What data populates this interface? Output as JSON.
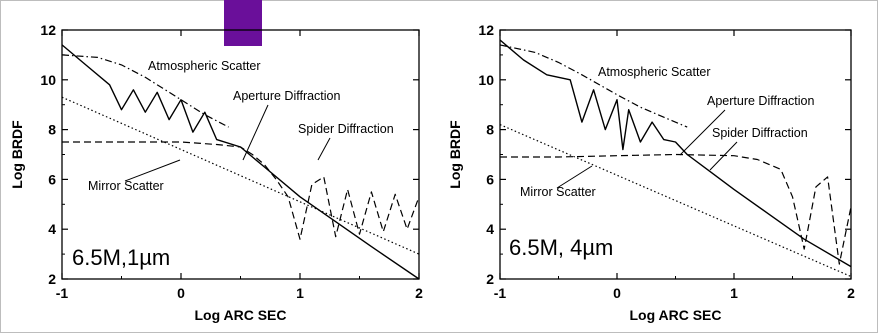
{
  "accent_color": "#6a0f9a",
  "chart_data": [
    {
      "type": "line",
      "title": "",
      "corner_label": "6.5M,1µm",
      "xlabel": "Log ARC SEC",
      "ylabel": "Log BRDF",
      "xlim": [
        -1,
        2
      ],
      "ylim": [
        2,
        12
      ],
      "xticks": [
        "-1",
        "0",
        "1",
        "2"
      ],
      "yticks": [
        "2",
        "4",
        "6",
        "8",
        "10",
        "12"
      ],
      "grid": false,
      "legend": "none",
      "series": [
        {
          "name": "Atmospheric Scatter",
          "style": "dash-dot",
          "x": [
            -1,
            -0.7,
            -0.5,
            -0.3,
            0,
            0.2,
            0.4
          ],
          "y": [
            11.0,
            10.9,
            10.6,
            10.1,
            9.2,
            8.6,
            8.1
          ]
        },
        {
          "name": "Aperture Diffraction",
          "style": "solid",
          "x": [
            -1,
            -0.8,
            -0.6,
            -0.5,
            -0.4,
            -0.3,
            -0.2,
            -0.1,
            0,
            0.1,
            0.2,
            0.3,
            0.5,
            0.7,
            1.0,
            1.3,
            1.6,
            2.0
          ],
          "y": [
            11.4,
            10.6,
            9.8,
            8.8,
            9.6,
            8.7,
            9.5,
            8.4,
            9.2,
            7.9,
            8.7,
            7.6,
            7.3,
            6.5,
            5.3,
            4.3,
            3.3,
            2.0
          ]
        },
        {
          "name": "Spider Diffraction",
          "style": "dashed",
          "x": [
            -1,
            -0.5,
            0,
            0.3,
            0.5,
            0.6,
            0.7,
            0.8,
            0.9,
            1.0,
            1.1,
            1.2,
            1.3,
            1.4,
            1.5,
            1.6,
            1.7,
            1.8,
            1.9,
            2.0
          ],
          "y": [
            7.5,
            7.5,
            7.5,
            7.4,
            7.3,
            7.0,
            6.6,
            6.0,
            5.3,
            3.6,
            5.8,
            6.1,
            3.7,
            5.6,
            3.8,
            5.5,
            3.9,
            5.4,
            4.0,
            5.3
          ]
        },
        {
          "name": "Mirror Scatter",
          "style": "dotted",
          "x": [
            -1,
            2
          ],
          "y": [
            9.3,
            3.0
          ]
        }
      ]
    },
    {
      "type": "line",
      "title": "",
      "corner_label": "6.5M, 4µm",
      "xlabel": "Log ARC SEC",
      "ylabel": "Log BRDF",
      "xlim": [
        -1,
        2
      ],
      "ylim": [
        2,
        12
      ],
      "xticks": [
        "-1",
        "0",
        "1",
        "2"
      ],
      "yticks": [
        "2",
        "4",
        "6",
        "8",
        "10",
        "12"
      ],
      "grid": false,
      "legend": "none",
      "series": [
        {
          "name": "Atmospheric Scatter",
          "style": "dash-dot",
          "x": [
            -1,
            -0.7,
            -0.5,
            -0.3,
            0,
            0.2,
            0.4,
            0.6
          ],
          "y": [
            11.4,
            11.1,
            10.7,
            10.2,
            9.4,
            8.9,
            8.5,
            8.1
          ]
        },
        {
          "name": "Aperture Diffraction",
          "style": "solid",
          "x": [
            -1,
            -0.8,
            -0.6,
            -0.4,
            -0.3,
            -0.2,
            -0.1,
            0,
            0.05,
            0.1,
            0.2,
            0.3,
            0.4,
            0.5,
            0.6,
            0.8,
            1.0,
            1.3,
            1.6,
            2.0
          ],
          "y": [
            11.6,
            10.8,
            10.2,
            10.0,
            8.3,
            9.6,
            8.0,
            9.2,
            7.2,
            8.8,
            7.5,
            8.3,
            7.6,
            7.5,
            7.0,
            6.3,
            5.6,
            4.6,
            3.6,
            2.5
          ]
        },
        {
          "name": "Spider Diffraction",
          "style": "dashed",
          "x": [
            -1,
            -0.5,
            0,
            0.5,
            1.0,
            1.2,
            1.4,
            1.5,
            1.6,
            1.7,
            1.8,
            1.9,
            2.0
          ],
          "y": [
            6.9,
            6.9,
            6.95,
            7.0,
            6.95,
            6.8,
            6.4,
            5.3,
            3.2,
            5.7,
            6.1,
            2.6,
            4.9
          ]
        },
        {
          "name": "Mirror Scatter",
          "style": "dotted",
          "x": [
            -1,
            2
          ],
          "y": [
            8.2,
            2.1
          ]
        }
      ]
    }
  ]
}
